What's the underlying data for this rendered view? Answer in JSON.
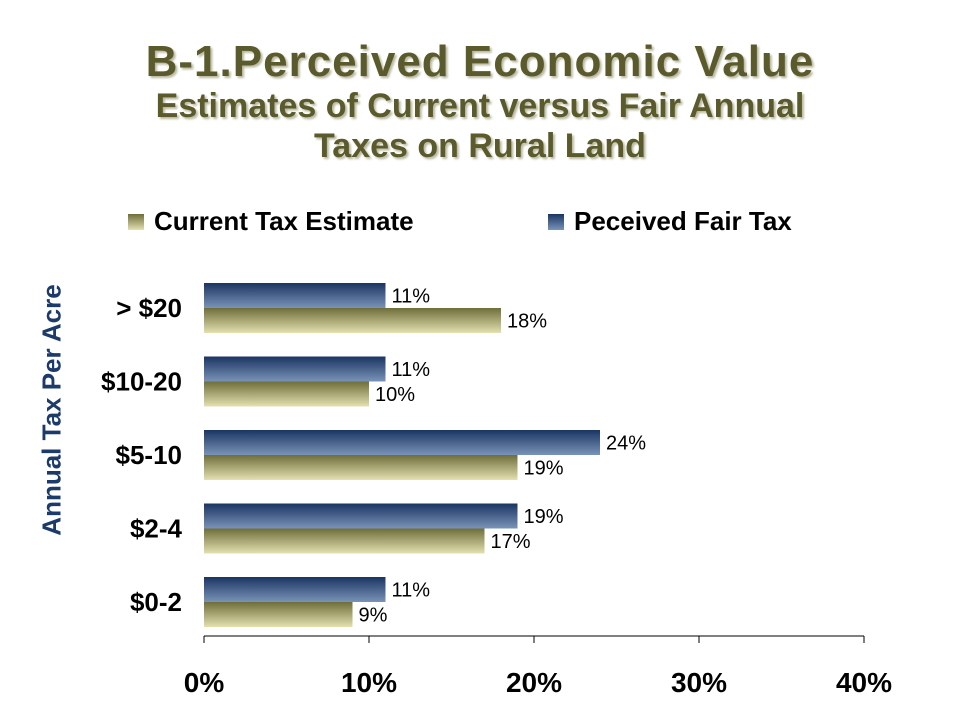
{
  "title": "B-1.Perceived Economic Value",
  "subtitle_line1": "Estimates of Current versus Fair Annual",
  "subtitle_line2": "Taxes on Rural Land",
  "colors": {
    "title": "#5a5a2c",
    "current_dark": "#6e6e3a",
    "current_light": "#e4e0b0",
    "fair_dark": "#1b3563",
    "fair_light": "#7a93b8",
    "axis_label": "#1c3a6a"
  },
  "chart_data": {
    "type": "bar",
    "orientation": "horizontal",
    "title": "B-1.Perceived Economic Value",
    "ylabel": "Annual Tax Per Acre",
    "xlabel": "",
    "categories": [
      "> $20",
      "$10-20",
      "$5-10",
      "$2-4",
      "$0-2"
    ],
    "series": [
      {
        "name": "Peceived Fair Tax",
        "values": [
          11,
          11,
          24,
          19,
          11
        ],
        "labels": [
          "11%",
          "11%",
          "24%",
          "19%",
          "11%"
        ]
      },
      {
        "name": "Current Tax Estimate",
        "values": [
          18,
          10,
          19,
          17,
          9
        ],
        "labels": [
          "18%",
          "10%",
          "19%",
          "17%",
          "9%"
        ]
      }
    ],
    "legend_order": [
      "Current Tax Estimate",
      "Peceived Fair Tax"
    ],
    "xlim": [
      0,
      40
    ],
    "xticks": [
      0,
      10,
      20,
      30,
      40
    ],
    "xtick_labels": [
      "0%",
      "10%",
      "20%",
      "30%",
      "40%"
    ],
    "grid": false,
    "legend_position": "top"
  }
}
